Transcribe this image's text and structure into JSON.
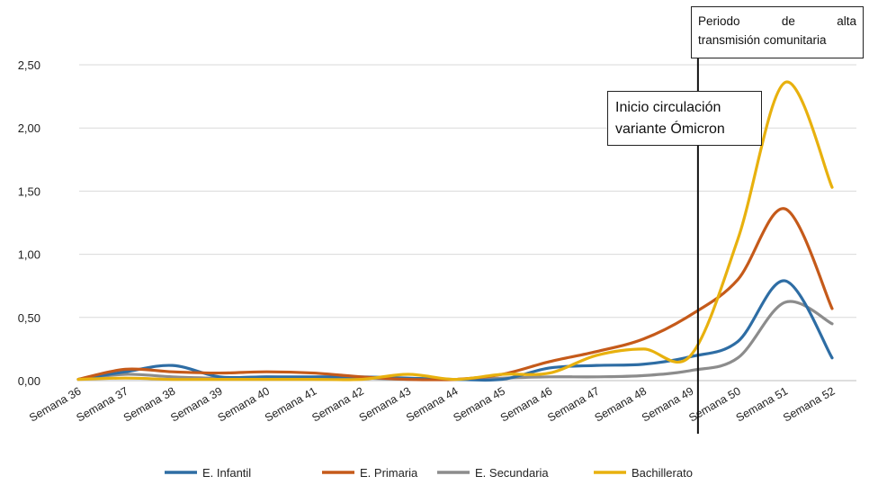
{
  "chart_data": {
    "type": "line",
    "categories": [
      "Semana 36",
      "Semana 37",
      "Semana 38",
      "Semana 39",
      "Semana 40",
      "Semana 41",
      "Semana 42",
      "Semana 43",
      "Semana 44",
      "Semana 45",
      "Semana 46",
      "Semana 47",
      "Semana 48",
      "Semana 49",
      "Semana 50",
      "Semana 51",
      "Semana 52"
    ],
    "ylim": [
      0,
      2.5
    ],
    "yticks": [
      "0,00",
      "0,50",
      "1,00",
      "1,50",
      "2,00",
      "2,50"
    ],
    "yticks_values": [
      0,
      0.5,
      1.0,
      1.5,
      2.0,
      2.5
    ],
    "grid": true,
    "legend_position": "bottom",
    "series": [
      {
        "name": "E. Infantil",
        "color": "#2e6da4",
        "values": [
          0.01,
          0.07,
          0.12,
          0.03,
          0.03,
          0.03,
          0.03,
          0.02,
          0.01,
          0.01,
          0.1,
          0.12,
          0.13,
          0.19,
          0.31,
          0.79,
          0.18
        ]
      },
      {
        "name": "E. Primaria",
        "color": "#c55a1a",
        "values": [
          0.01,
          0.09,
          0.07,
          0.06,
          0.07,
          0.06,
          0.03,
          0.01,
          0.01,
          0.05,
          0.15,
          0.23,
          0.33,
          0.52,
          0.8,
          1.36,
          0.57
        ]
      },
      {
        "name": "E. Secundaria",
        "color": "#8c8c8c",
        "values": [
          0.01,
          0.05,
          0.03,
          0.02,
          0.03,
          0.02,
          0.02,
          0.01,
          0.01,
          0.02,
          0.03,
          0.03,
          0.04,
          0.08,
          0.18,
          0.62,
          0.45
        ]
      },
      {
        "name": "Bachillerato",
        "color": "#e8b10e",
        "values": [
          0.01,
          0.02,
          0.01,
          0.01,
          0.01,
          0.01,
          0.01,
          0.05,
          0.01,
          0.05,
          0.06,
          0.2,
          0.25,
          0.2,
          1.12,
          2.36,
          1.53
        ]
      }
    ],
    "annotations": {
      "omicron_line1": "Inicio circulación",
      "omicron_line2": "variante Ómicron",
      "periodo_word1": "Periodo",
      "periodo_word2": "de",
      "periodo_word3": "alta",
      "periodo_line2": "transmisión comunitaria"
    },
    "vline_at_category": "Semana 49"
  }
}
